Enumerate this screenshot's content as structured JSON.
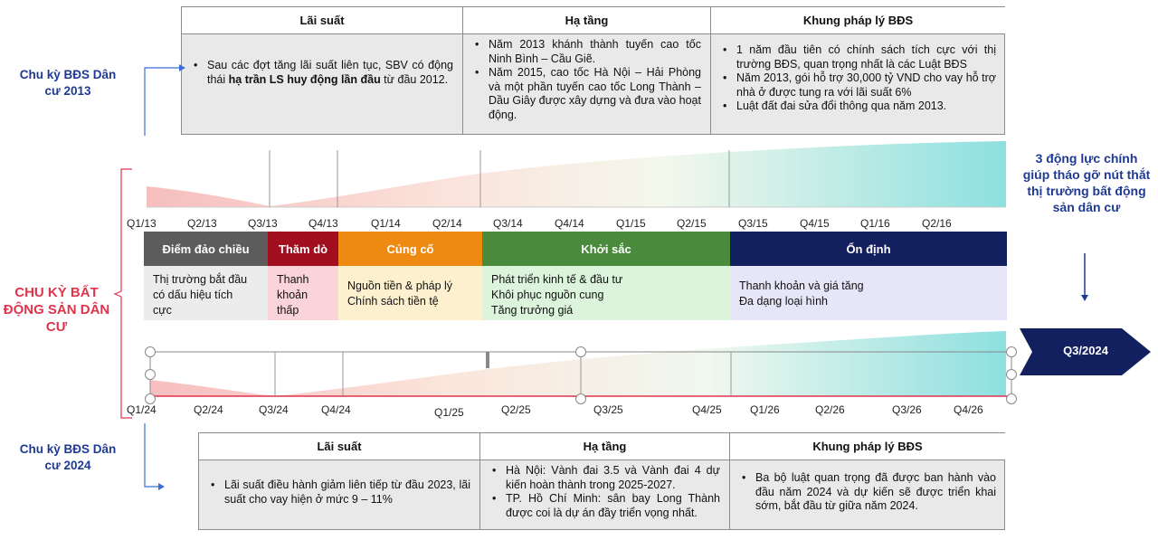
{
  "top_table": {
    "headers": [
      "Lãi suất",
      "Hạ tầng",
      "Khung pháp lý BĐS"
    ],
    "col1": {
      "pre": "Sau các đợt tăng lãi suất liên tục, SBV có động thái ",
      "bold": "hạ trần LS huy động lần đầu",
      "post": " từ đầu 2012."
    },
    "col2": [
      "Năm 2013 khánh thành tuyến cao tốc Ninh Bình – Cầu Giẽ.",
      "Năm 2015, cao tốc Hà Nội – Hải Phòng và một phần tuyến cao tốc Long Thành – Dầu Giây được xây dựng và đưa vào hoạt động."
    ],
    "col3": [
      "1 năm đầu tiên có chính sách tích cực với thị trường BĐS, quan trọng nhất là các Luật BĐS",
      "Năm 2013, gói hỗ trợ 30,000 tỷ VND cho vay hỗ trợ nhà ở được tung ra với lãi suất 6%",
      "Luật đất đai sửa đổi thông qua năm 2013."
    ]
  },
  "bottom_table": {
    "headers": [
      "Lãi suất",
      "Hạ tầng",
      "Khung pháp lý BĐS"
    ],
    "col1": [
      "Lãi suất điều hành giảm liên tiếp từ đầu 2023, lãi suất cho vay hiện ở mức 9 – 11%"
    ],
    "col2": [
      "Hà Nội: Vành đai 3.5 và Vành đai 4 dự kiến hoàn thành trong 2025-2027.",
      "TP. Hồ Chí Minh: sân bay Long Thành được coi là dự án đầy triển vọng nhất."
    ],
    "col3": [
      "Ba bộ luật quan trọng đã được ban hành vào đầu năm 2024 và dự kiến sẽ được triển khai sớm, bắt đầu từ giữa năm 2024."
    ]
  },
  "labels": {
    "cycle_2013": "Chu kỳ BĐS Dân cư 2013",
    "cycle_2024": "Chu kỳ BĐS Dân cư 2024",
    "cycle_main": "CHU KỲ BẤT ĐỘNG SẢN DÂN CƯ",
    "drivers": "3 động lực chính giúp tháo gỡ nút thắt thị trường bất động sản dân cư",
    "current": "Q3/2024"
  },
  "top_ticks": [
    "Q1/13",
    "Q2/13",
    "Q3/13",
    "Q4/13",
    "Q1/14",
    "Q2/14",
    "Q3/14",
    "Q4/14",
    "Q1/15",
    "Q2/15",
    "Q3/15",
    "Q4/15",
    "Q1/16",
    "Q2/16"
  ],
  "bottom_ticks": [
    "Q1/24",
    "Q2/24",
    "Q3/24",
    "Q4/24",
    "Q1/25",
    "Q2/25",
    "Q3/25",
    "Q4/25",
    "Q1/26",
    "Q2/26",
    "Q3/26",
    "Q4/26"
  ],
  "phases": [
    {
      "name": "Điểm đảo chiều",
      "color": "#5c5c5c",
      "body_color": "#ececec",
      "lines": [
        "Thị trường bắt đầu",
        "có dấu hiệu tích",
        "cực"
      ]
    },
    {
      "name": "Thăm dò",
      "color": "#a10f1e",
      "body_color": "#fad4d8",
      "lines": [
        "Thanh",
        "khoản",
        "thấp"
      ]
    },
    {
      "name": "Củng cố",
      "color": "#ee8a12",
      "body_color": "#fdf0cf",
      "lines": [
        "Nguồn tiền & pháp lý",
        "Chính sách tiền tệ"
      ]
    },
    {
      "name": "Khởi sắc",
      "color": "#4a8a3c",
      "body_color": "#dcf3dc",
      "lines": [
        "Phát triển kinh tế & đầu tư",
        "Khôi phục nguồn cung",
        "Tăng trưởng giá"
      ]
    },
    {
      "name": "Ổn định",
      "color": "#13205f",
      "body_color": "#e6e6f8",
      "lines": [
        "Thanh khoản và giá tăng",
        "Đa dạng loại hình"
      ]
    }
  ],
  "colors": {
    "accent_blue": "#1f3a93",
    "accent_red": "#e0344d",
    "navy": "#13205f",
    "teal": "#8de0e0",
    "pink": "#f6b7b7"
  }
}
